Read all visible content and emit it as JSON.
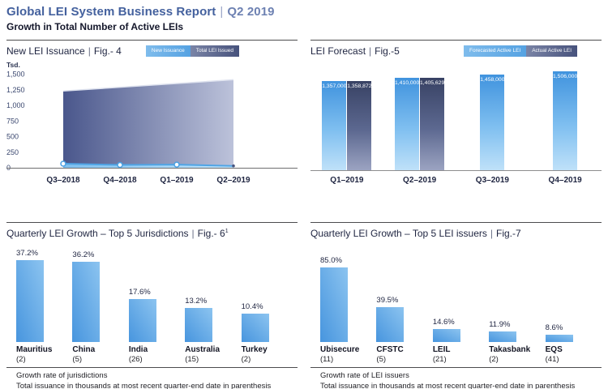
{
  "header": {
    "title": "Global LEI System Business Report",
    "separator": "|",
    "period": "Q2 2019",
    "subtitle": "Growth in Total Number of Active LEIs"
  },
  "colors": {
    "title_blue": "#44619e",
    "subtitle_navy": "#14172b",
    "light_bar_blue_top": "#4093de",
    "light_bar_blue_bottom": "#bfe1f9",
    "dark_bar_slate_top": "#384264",
    "dark_bar_slate_bottom": "#9ba3c1",
    "area_slate_left": "#4a578c",
    "area_slate_right": "#bcc2da",
    "issuance_line_blue": "#4fa5e6",
    "bottom_bar_blue": "#4795de",
    "hairline_grey": "#4c4c4e"
  },
  "chart_data": [
    {
      "id": "fig4",
      "type": "area",
      "title": "New LEI Issuance",
      "separator": "|",
      "fig_label": "Fig.- 4",
      "unit_label": "Tsd.",
      "legend": [
        {
          "label": "New Issuance",
          "style": "light"
        },
        {
          "label": "Total LEI Issued",
          "style": "dark"
        }
      ],
      "x": [
        "Q3–2018",
        "Q4–2018",
        "Q1–2019",
        "Q2–2019"
      ],
      "series": [
        {
          "name": "Total LEI Issued",
          "values": [
            1230,
            1290,
            1350,
            1410
          ]
        },
        {
          "name": "New Issuance",
          "values": [
            65,
            45,
            50,
            30
          ]
        }
      ],
      "ylabel": "Tsd.",
      "ylim": [
        0,
        1500
      ],
      "yticks": [
        "1,500",
        "1,250",
        "1,000",
        "750",
        "500",
        "250",
        "0"
      ],
      "grid": false,
      "legend_position": "top-right"
    },
    {
      "id": "fig5",
      "type": "bar",
      "title": "LEI Forecast",
      "separator": "|",
      "fig_label": "Fig.-5",
      "legend": [
        {
          "label": "Forecasted Active LEI",
          "style": "light"
        },
        {
          "label": "Actual Active LEI",
          "style": "dark"
        }
      ],
      "categories": [
        "Q1–2019",
        "Q2–2019",
        "Q3–2019",
        "Q4–2019"
      ],
      "series": [
        {
          "name": "Forecasted Active LEI",
          "values": [
            1357000,
            1410000,
            1458000,
            1506000
          ],
          "labels": [
            "1,357,000",
            "1,410,000",
            "1,458,000",
            "1,506,000"
          ]
        },
        {
          "name": "Actual Active LEI",
          "values": [
            1358872,
            1405629,
            null,
            null
          ],
          "labels": [
            "1,358,872",
            "1,405,629",
            null,
            null
          ]
        }
      ],
      "ylim": [
        0,
        1506000
      ],
      "grid": false,
      "legend_position": "top-right"
    },
    {
      "id": "fig6",
      "type": "bar",
      "title": "Quarterly LEI Growth – Top 5 Jurisdictions",
      "separator": "|",
      "fig_label": "Fig.- 6",
      "fig_superscript": "1",
      "categories": [
        "Mauritius",
        "China",
        "India",
        "Australia",
        "Turkey"
      ],
      "counts": [
        "(2)",
        "(5)",
        "(26)",
        "(15)",
        "(2)"
      ],
      "values": [
        37.2,
        36.2,
        17.6,
        13.2,
        10.4
      ],
      "value_labels": [
        "37.2%",
        "36.2%",
        "17.6%",
        "13.2%",
        "10.4%"
      ],
      "footnotes": [
        "Growth rate of jurisdictions",
        "Total issuance in thousands at most recent quarter-end date in parenthesis"
      ]
    },
    {
      "id": "fig7",
      "type": "bar",
      "title": "Quarterly LEI Growth – Top 5 LEI issuers",
      "separator": "|",
      "fig_label": "Fig.-7",
      "categories": [
        "Ubisecure",
        "CFSTC",
        "LEIL",
        "Takasbank",
        "EQS"
      ],
      "counts": [
        "(11)",
        "(5)",
        "(21)",
        "(2)",
        "(41)"
      ],
      "values": [
        85.0,
        39.5,
        14.6,
        11.9,
        8.6
      ],
      "value_labels": [
        "85.0%",
        "39.5%",
        "14.6%",
        "11.9%",
        "8.6%"
      ],
      "footnotes": [
        "Growth rate of LEI issuers",
        "Total issuance in thousands at most recent quarter-end date in parenthesis"
      ]
    }
  ]
}
